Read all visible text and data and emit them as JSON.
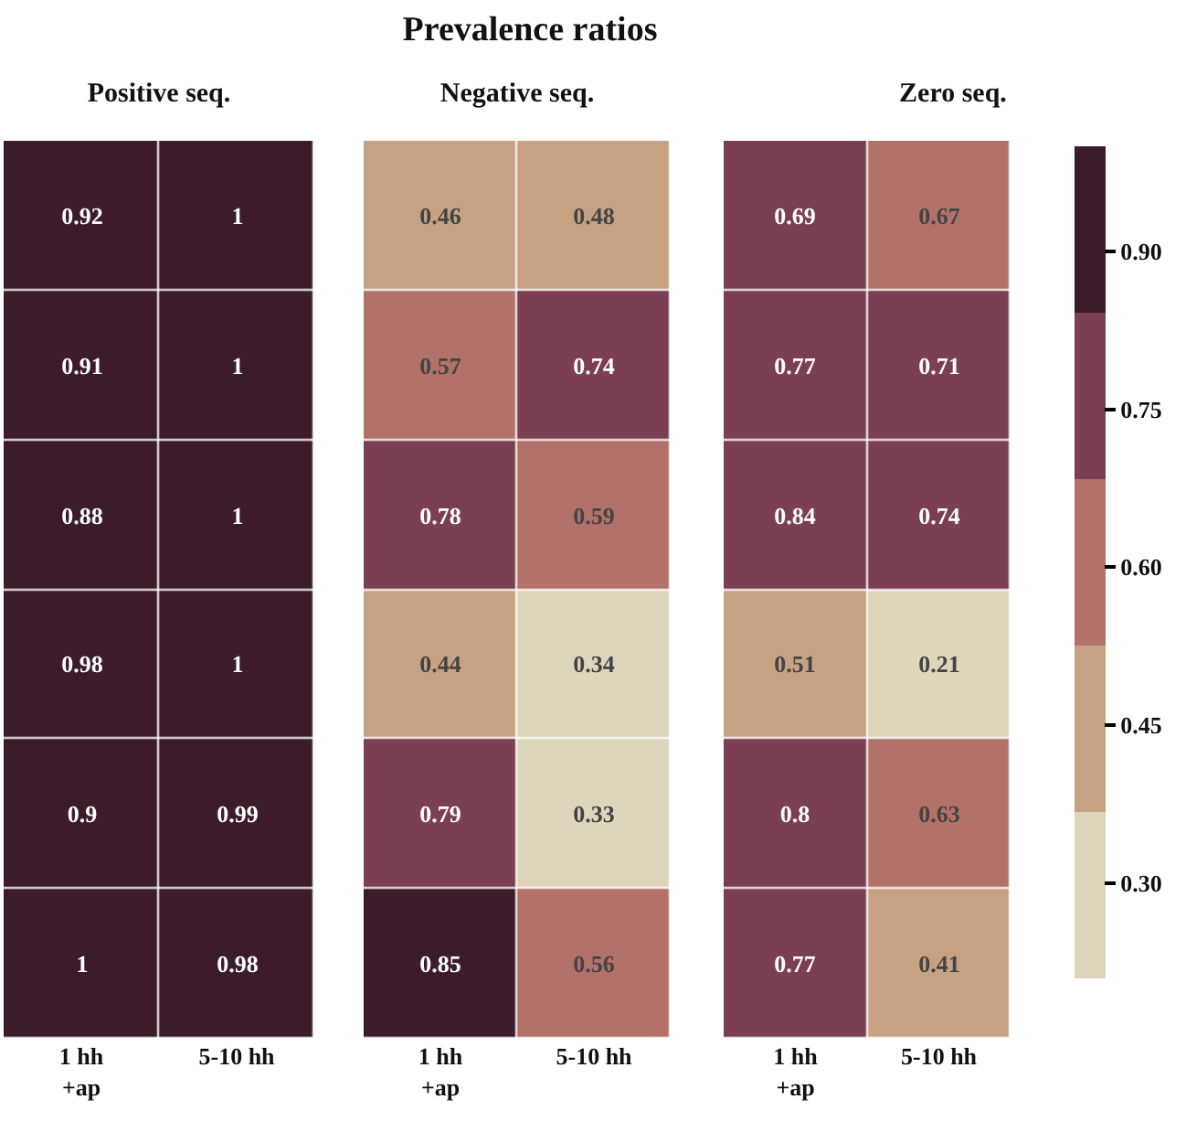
{
  "chart_data": [
    {
      "type": "heatmap",
      "subtitle": "Positive seq.",
      "categories": [
        "1 hh\n+ap",
        "5-10 hh"
      ],
      "y_categories": [
        null,
        null,
        null,
        null,
        null,
        null
      ],
      "data_labels": true,
      "cells": [
        [
          0.92,
          1
        ],
        [
          0.91,
          1
        ],
        [
          0.88,
          1
        ],
        [
          0.98,
          1
        ],
        [
          0.9,
          0.99
        ],
        [
          1,
          0.98
        ]
      ]
    },
    {
      "type": "heatmap",
      "title": "Prevalence ratios",
      "subtitle": "Negative seq.",
      "categories": [
        "1 hh\n+ap",
        "5-10 hh"
      ],
      "y_categories": [
        null,
        null,
        null,
        null,
        null,
        null
      ],
      "data_labels": true,
      "cells": [
        [
          0.46,
          0.48
        ],
        [
          0.57,
          0.74
        ],
        [
          0.78,
          0.59
        ],
        [
          0.44,
          0.34
        ],
        [
          0.79,
          0.33
        ],
        [
          0.85,
          0.56
        ]
      ]
    },
    {
      "type": "heatmap",
      "subtitle": "Zero seq.",
      "categories": [
        "1 hh\n+ap",
        "5-10 hh"
      ],
      "y_categories": [
        null,
        null,
        null,
        null,
        null,
        null
      ],
      "data_labels": true,
      "clim": [
        0.21,
        1
      ],
      "cticks": [
        {
          "value": 0.9,
          "label": "0.90"
        },
        0.75,
        {
          "value": 0.6,
          "label": "0.60"
        },
        0.45,
        {
          "value": 0.3,
          "label": "0.30"
        }
      ],
      "colors": [
        "#ddd6bc",
        "#c6a283",
        "#b2726a",
        "#7b3f52",
        "#3c1c2a"
      ],
      "cells": [
        [
          0.69,
          0.67
        ],
        [
          0.77,
          0.71
        ],
        [
          0.84,
          0.74
        ],
        [
          0.51,
          0.21
        ],
        [
          0.8,
          0.63
        ],
        [
          0.77,
          0.41
        ]
      ]
    }
  ]
}
